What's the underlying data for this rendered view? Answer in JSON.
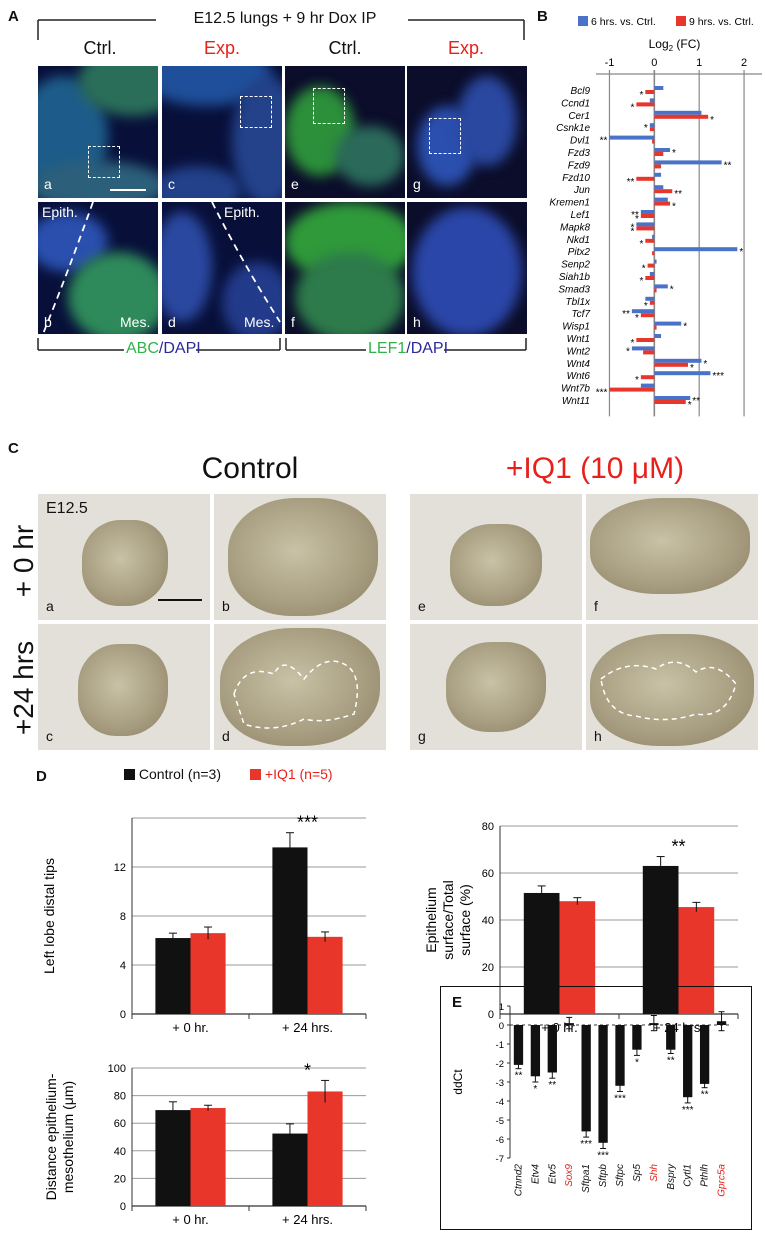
{
  "panelA": {
    "letter": "A",
    "title": "E12.5 lungs + 9 hr Dox IP",
    "headers": [
      "Ctrl.",
      "Exp.",
      "Ctrl.",
      "Exp."
    ],
    "sublabels": [
      "a",
      "b",
      "c",
      "d",
      "e",
      "f",
      "g",
      "h"
    ],
    "epith": "Epith.",
    "mes": "Mes.",
    "stain_left_1": "ABC",
    "stain_left_2": "/DAPI",
    "stain_right_1": "LEF1",
    "stain_right_2": "/DAPI",
    "colors": {
      "green": "#2fb34a",
      "blue": "#2a2a9a",
      "red": "#e8201c"
    }
  },
  "panelB": {
    "letter": "B",
    "legend": [
      "6 hrs. vs. Ctrl.",
      "9 hrs. vs. Ctrl."
    ],
    "axis_title": "Log",
    "axis_sub": "2",
    "axis_suffix": " (FC)",
    "ticks": [
      "-1",
      "0",
      "1",
      "2"
    ]
  },
  "panelC": {
    "letter": "C",
    "control_title": "Control",
    "iq1_title": "+IQ1 (10 μM)",
    "row_labels": [
      "+ 0 hr",
      "+24 hrs"
    ],
    "stage": "E12.5",
    "sublabels": [
      "a",
      "b",
      "e",
      "f",
      "c",
      "d",
      "g",
      "h"
    ]
  },
  "panelD": {
    "letter": "D",
    "legend": [
      "Control (n=3)",
      "+IQ1 (n=5)"
    ]
  },
  "panelE": {
    "letter": "E"
  },
  "chart_data": [
    {
      "type": "bar",
      "orientation": "horizontal",
      "title": "",
      "xlabel": "Log2 (FC)",
      "xlim": [
        -1.3,
        2.4
      ],
      "categories": [
        "Bcl9",
        "Ccnd1",
        "Cer1",
        "Csnk1e",
        "Dvl1",
        "Fzd3",
        "Fzd9",
        "Fzd10",
        "Jun",
        "Kremen1",
        "Lef1",
        "Mapk8",
        "Nkd1",
        "Pitx2",
        "Senp2",
        "Siah1b",
        "Smad3",
        "Tbl1x",
        "Tcf7",
        "Wisp1",
        "Wnt1",
        "Wnt2",
        "Wnt4",
        "Wnt6",
        "Wnt7b",
        "Wnt11"
      ],
      "series": [
        {
          "name": "6 hrs. vs. Ctrl.",
          "color": "#4a72c8",
          "values": [
            0.2,
            -0.1,
            1.05,
            -0.1,
            -1.0,
            0.35,
            1.5,
            0.15,
            0.2,
            0.3,
            -0.3,
            -0.4,
            -0.05,
            1.85,
            0.05,
            -0.1,
            0.3,
            -0.2,
            -0.5,
            0.6,
            0.15,
            -0.5,
            1.05,
            1.25,
            -0.3,
            0.8
          ]
        },
        {
          "name": "9 hrs. vs. Ctrl.",
          "color": "#e8362a",
          "values": [
            -0.2,
            -0.4,
            1.2,
            -0.1,
            -0.05,
            0.2,
            0.15,
            -0.4,
            0.4,
            0.35,
            -0.3,
            -0.4,
            -0.2,
            -0.05,
            -0.15,
            -0.2,
            0.05,
            -0.1,
            -0.3,
            0.05,
            -0.4,
            -0.25,
            0.75,
            -0.3,
            -1.0,
            0.7
          ]
        }
      ],
      "significance_6h": [
        "",
        "",
        "",
        "*",
        "**",
        "*",
        "**",
        "",
        "",
        "",
        "**",
        "*",
        "",
        "*",
        "",
        "",
        "*",
        "",
        "**",
        "*",
        "",
        "*",
        "*",
        "***",
        "",
        "**"
      ],
      "significance_9h": [
        "*",
        "*",
        "*",
        "",
        "",
        "",
        "",
        "**",
        "**",
        "*",
        "*",
        "*",
        "*",
        "",
        "*",
        "*",
        "",
        "*",
        "*",
        "",
        "*",
        "",
        "*",
        "*",
        "***",
        "*"
      ]
    },
    {
      "type": "bar",
      "title": "",
      "ylabel": "Left lobe  distal tips",
      "categories": [
        "+ 0 hr.",
        "+ 24 hrs."
      ],
      "ylim": [
        0,
        16
      ],
      "yticks": [
        "0",
        "4",
        "8",
        "12"
      ],
      "series": [
        {
          "name": "Control (n=3)",
          "color": "#111111",
          "values": [
            6.2,
            13.6
          ],
          "errors": [
            0.4,
            1.2
          ]
        },
        {
          "name": "+IQ1 (n=5)",
          "color": "#e8362a",
          "values": [
            6.6,
            6.3
          ],
          "errors": [
            0.5,
            0.4
          ]
        }
      ],
      "significance": [
        "",
        "***"
      ]
    },
    {
      "type": "bar",
      "title": "",
      "ylabel": "Epithelium surface/Total surface (%)",
      "categories": [
        "+ 0 hr.",
        "+ 24 hrs."
      ],
      "ylim": [
        0,
        80
      ],
      "yticks": [
        "0",
        "20",
        "40",
        "60",
        "80"
      ],
      "series": [
        {
          "name": "Control (n=3)",
          "color": "#111111",
          "values": [
            51.5,
            63
          ],
          "errors": [
            3,
            4
          ]
        },
        {
          "name": "+IQ1 (n=5)",
          "color": "#e8362a",
          "values": [
            48,
            45.5
          ],
          "errors": [
            1.5,
            2
          ]
        }
      ],
      "significance": [
        "",
        "**"
      ]
    },
    {
      "type": "bar",
      "title": "",
      "ylabel": "Distance epithelium-mesothelium (μm)",
      "categories": [
        "+ 0 hr.",
        "+ 24 hrs."
      ],
      "ylim": [
        0,
        100
      ],
      "yticks": [
        "0",
        "20",
        "40",
        "60",
        "80",
        "100"
      ],
      "series": [
        {
          "name": "Control (n=3)",
          "color": "#111111",
          "values": [
            69.5,
            52.5
          ],
          "errors": [
            6,
            7
          ]
        },
        {
          "name": "+IQ1 (n=5)",
          "color": "#e8362a",
          "values": [
            71,
            83
          ],
          "errors": [
            2,
            8
          ]
        }
      ],
      "significance": [
        "",
        "*"
      ]
    },
    {
      "type": "bar",
      "title": "",
      "ylabel": "ddCt",
      "ylim": [
        -7,
        1
      ],
      "yticks": [
        "1",
        "0",
        "-1",
        "-2",
        "-3",
        "-4",
        "-5",
        "-6",
        "-7"
      ],
      "categories": [
        "Ctnnd2",
        "Etv4",
        "Etv5",
        "Sox9",
        "Sftpa1",
        "Sftpb",
        "Sftpc",
        "Sp5",
        "Shh",
        "Bspry",
        "Cytl1",
        "Pthlh",
        "Gprc5a"
      ],
      "red_labels": [
        "Sox9",
        "Shh",
        "Gprc5a"
      ],
      "values": [
        -2.1,
        -2.7,
        -2.5,
        0.1,
        -5.6,
        -6.2,
        -3.2,
        -1.3,
        0.1,
        -1.3,
        -3.8,
        -3.1,
        0.2
      ],
      "errors": [
        0.2,
        0.3,
        0.3,
        0.3,
        0.3,
        0.3,
        0.3,
        0.3,
        0.4,
        0.2,
        0.3,
        0.2,
        0.5
      ],
      "significance": [
        "**",
        "*",
        "**",
        "",
        "***",
        "***",
        "***",
        "*",
        "",
        "**",
        "***",
        "**",
        ""
      ]
    }
  ]
}
